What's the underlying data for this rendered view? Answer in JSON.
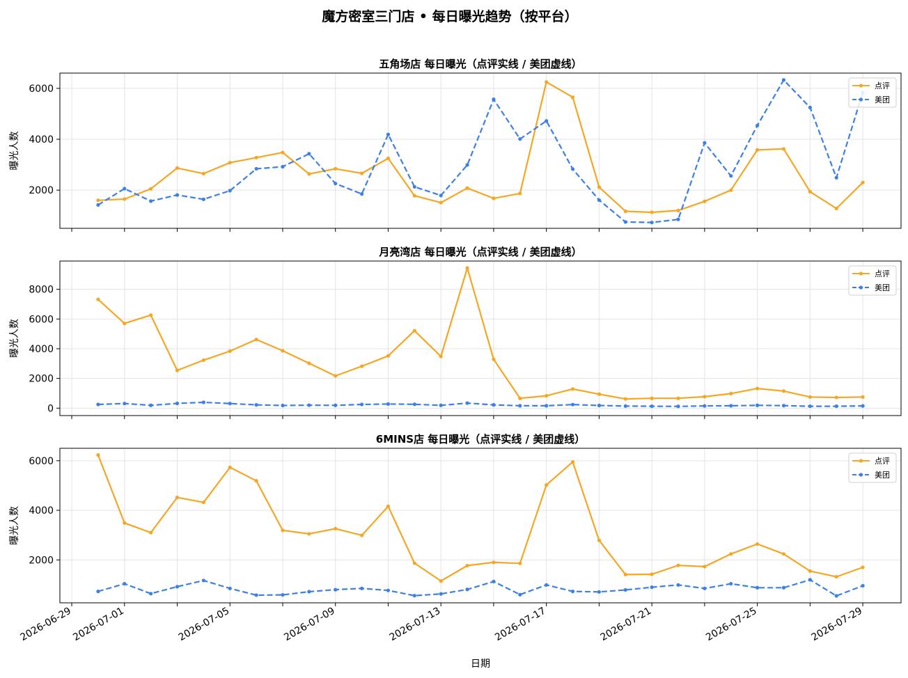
{
  "figure": {
    "suptitle": "魔方密室三门店 • 每日曝光趋势（按平台）",
    "xlabel": "日期",
    "colors": {
      "dianping": "#f5a623",
      "meituan": "#3c7fe6"
    }
  },
  "chart_data": [
    {
      "type": "line",
      "title": "五角场店 每日曝光（点评实线 / 美团虚线）",
      "ylabel": "曝光人数",
      "ylim": [
        500,
        6600
      ],
      "yticks": [
        2000,
        4000,
        6000
      ],
      "ytick_labels": [
        "2000",
        "4000",
        "6000"
      ],
      "grid": true,
      "legend_position": "top-right",
      "x": [
        "2026-06-30",
        "2026-07-01",
        "2026-07-02",
        "2026-07-03",
        "2026-07-04",
        "2026-07-05",
        "2026-07-06",
        "2026-07-07",
        "2026-07-08",
        "2026-07-09",
        "2026-07-10",
        "2026-07-11",
        "2026-07-12",
        "2026-07-13",
        "2026-07-14",
        "2026-07-15",
        "2026-07-16",
        "2026-07-17",
        "2026-07-18",
        "2026-07-19",
        "2026-07-20",
        "2026-07-21",
        "2026-07-22",
        "2026-07-23",
        "2026-07-24",
        "2026-07-25",
        "2026-07-26",
        "2026-07-27",
        "2026-07-28",
        "2026-07-29"
      ],
      "series": [
        {
          "name": "点评",
          "style": "solid",
          "color": "#f5a623",
          "values": [
            1600,
            1650,
            2050,
            2870,
            2650,
            3080,
            3280,
            3480,
            2640,
            2840,
            2660,
            3250,
            1780,
            1510,
            2080,
            1680,
            1870,
            6250,
            5650,
            2120,
            1170,
            1130,
            1200,
            1560,
            2000,
            3580,
            3620,
            1940,
            1280,
            2300
          ]
        },
        {
          "name": "美团",
          "style": "dashed",
          "color": "#3c7fe6",
          "values": [
            1420,
            2060,
            1570,
            1810,
            1640,
            1980,
            2840,
            2920,
            3430,
            2260,
            1850,
            4190,
            2130,
            1790,
            2990,
            5570,
            4010,
            4720,
            2830,
            1610,
            750,
            730,
            850,
            3860,
            2560,
            4540,
            6330,
            5250,
            2490,
            5840
          ]
        }
      ]
    },
    {
      "type": "line",
      "title": "月亮湾店 每日曝光（点评实线 / 美团虚线）",
      "ylabel": "曝光人数",
      "ylim": [
        -500,
        9900
      ],
      "yticks": [
        0,
        2000,
        4000,
        6000,
        8000
      ],
      "ytick_labels": [
        "0",
        "2000",
        "4000",
        "6000",
        "8000"
      ],
      "grid": true,
      "legend_position": "top-right",
      "x": [
        "2026-06-30",
        "2026-07-01",
        "2026-07-02",
        "2026-07-03",
        "2026-07-04",
        "2026-07-05",
        "2026-07-06",
        "2026-07-07",
        "2026-07-08",
        "2026-07-09",
        "2026-07-10",
        "2026-07-11",
        "2026-07-12",
        "2026-07-13",
        "2026-07-14",
        "2026-07-15",
        "2026-07-16",
        "2026-07-17",
        "2026-07-18",
        "2026-07-19",
        "2026-07-20",
        "2026-07-21",
        "2026-07-22",
        "2026-07-23",
        "2026-07-24",
        "2026-07-25",
        "2026-07-26",
        "2026-07-27",
        "2026-07-28",
        "2026-07-29"
      ],
      "series": [
        {
          "name": "点评",
          "style": "solid",
          "color": "#f5a623",
          "values": [
            7320,
            5700,
            6260,
            2540,
            3230,
            3840,
            4620,
            3860,
            3020,
            2170,
            2820,
            3520,
            5210,
            3480,
            9430,
            3290,
            660,
            830,
            1290,
            940,
            620,
            660,
            660,
            770,
            980,
            1320,
            1150,
            750,
            720,
            750
          ]
        },
        {
          "name": "美团",
          "style": "dashed",
          "color": "#3c7fe6",
          "values": [
            250,
            310,
            190,
            320,
            390,
            310,
            220,
            180,
            200,
            190,
            250,
            280,
            260,
            190,
            340,
            220,
            160,
            160,
            240,
            180,
            140,
            130,
            120,
            150,
            160,
            190,
            170,
            130,
            130,
            150
          ]
        }
      ]
    },
    {
      "type": "line",
      "title": "6MINS店 每日曝光（点评实线 / 美团虚线）",
      "ylabel": "曝光人数",
      "ylim": [
        270,
        6500
      ],
      "yticks": [
        2000,
        4000,
        6000
      ],
      "ytick_labels": [
        "2000",
        "4000",
        "6000"
      ],
      "grid": true,
      "legend_position": "top-right",
      "x": [
        "2026-06-30",
        "2026-07-01",
        "2026-07-02",
        "2026-07-03",
        "2026-07-04",
        "2026-07-05",
        "2026-07-06",
        "2026-07-07",
        "2026-07-08",
        "2026-07-09",
        "2026-07-10",
        "2026-07-11",
        "2026-07-12",
        "2026-07-13",
        "2026-07-14",
        "2026-07-15",
        "2026-07-16",
        "2026-07-17",
        "2026-07-18",
        "2026-07-19",
        "2026-07-20",
        "2026-07-21",
        "2026-07-22",
        "2026-07-23",
        "2026-07-24",
        "2026-07-25",
        "2026-07-26",
        "2026-07-27",
        "2026-07-28",
        "2026-07-29"
      ],
      "series": [
        {
          "name": "点评",
          "style": "solid",
          "color": "#f5a623",
          "values": [
            6230,
            3490,
            3100,
            4520,
            4320,
            5730,
            5190,
            3190,
            3050,
            3260,
            2990,
            4160,
            1870,
            1150,
            1770,
            1900,
            1860,
            5020,
            5950,
            2790,
            1410,
            1420,
            1780,
            1730,
            2240,
            2640,
            2240,
            1550,
            1320,
            1700
          ]
        },
        {
          "name": "美团",
          "style": "dashed",
          "color": "#3c7fe6",
          "values": [
            730,
            1040,
            640,
            920,
            1170,
            850,
            580,
            590,
            720,
            800,
            850,
            770,
            560,
            630,
            810,
            1130,
            600,
            990,
            730,
            710,
            790,
            900,
            990,
            850,
            1040,
            880,
            880,
            1200,
            550,
            960
          ]
        }
      ]
    }
  ],
  "x_axis": {
    "ticks": [
      "2026-06-29",
      "2026-07-01",
      "2026-07-03",
      "2026-07-05",
      "2026-07-07",
      "2026-07-09",
      "2026-07-11",
      "2026-07-13",
      "2026-07-15",
      "2026-07-17",
      "2026-07-19",
      "2026-07-21",
      "2026-07-23",
      "2026-07-25",
      "2026-07-27",
      "2026-07-29"
    ],
    "labeled_ticks": [
      "2026-06-29",
      "2026-07-01",
      "2026-07-05",
      "2026-07-09",
      "2026-07-13",
      "2026-07-17",
      "2026-07-21",
      "2026-07-25",
      "2026-07-29"
    ]
  }
}
